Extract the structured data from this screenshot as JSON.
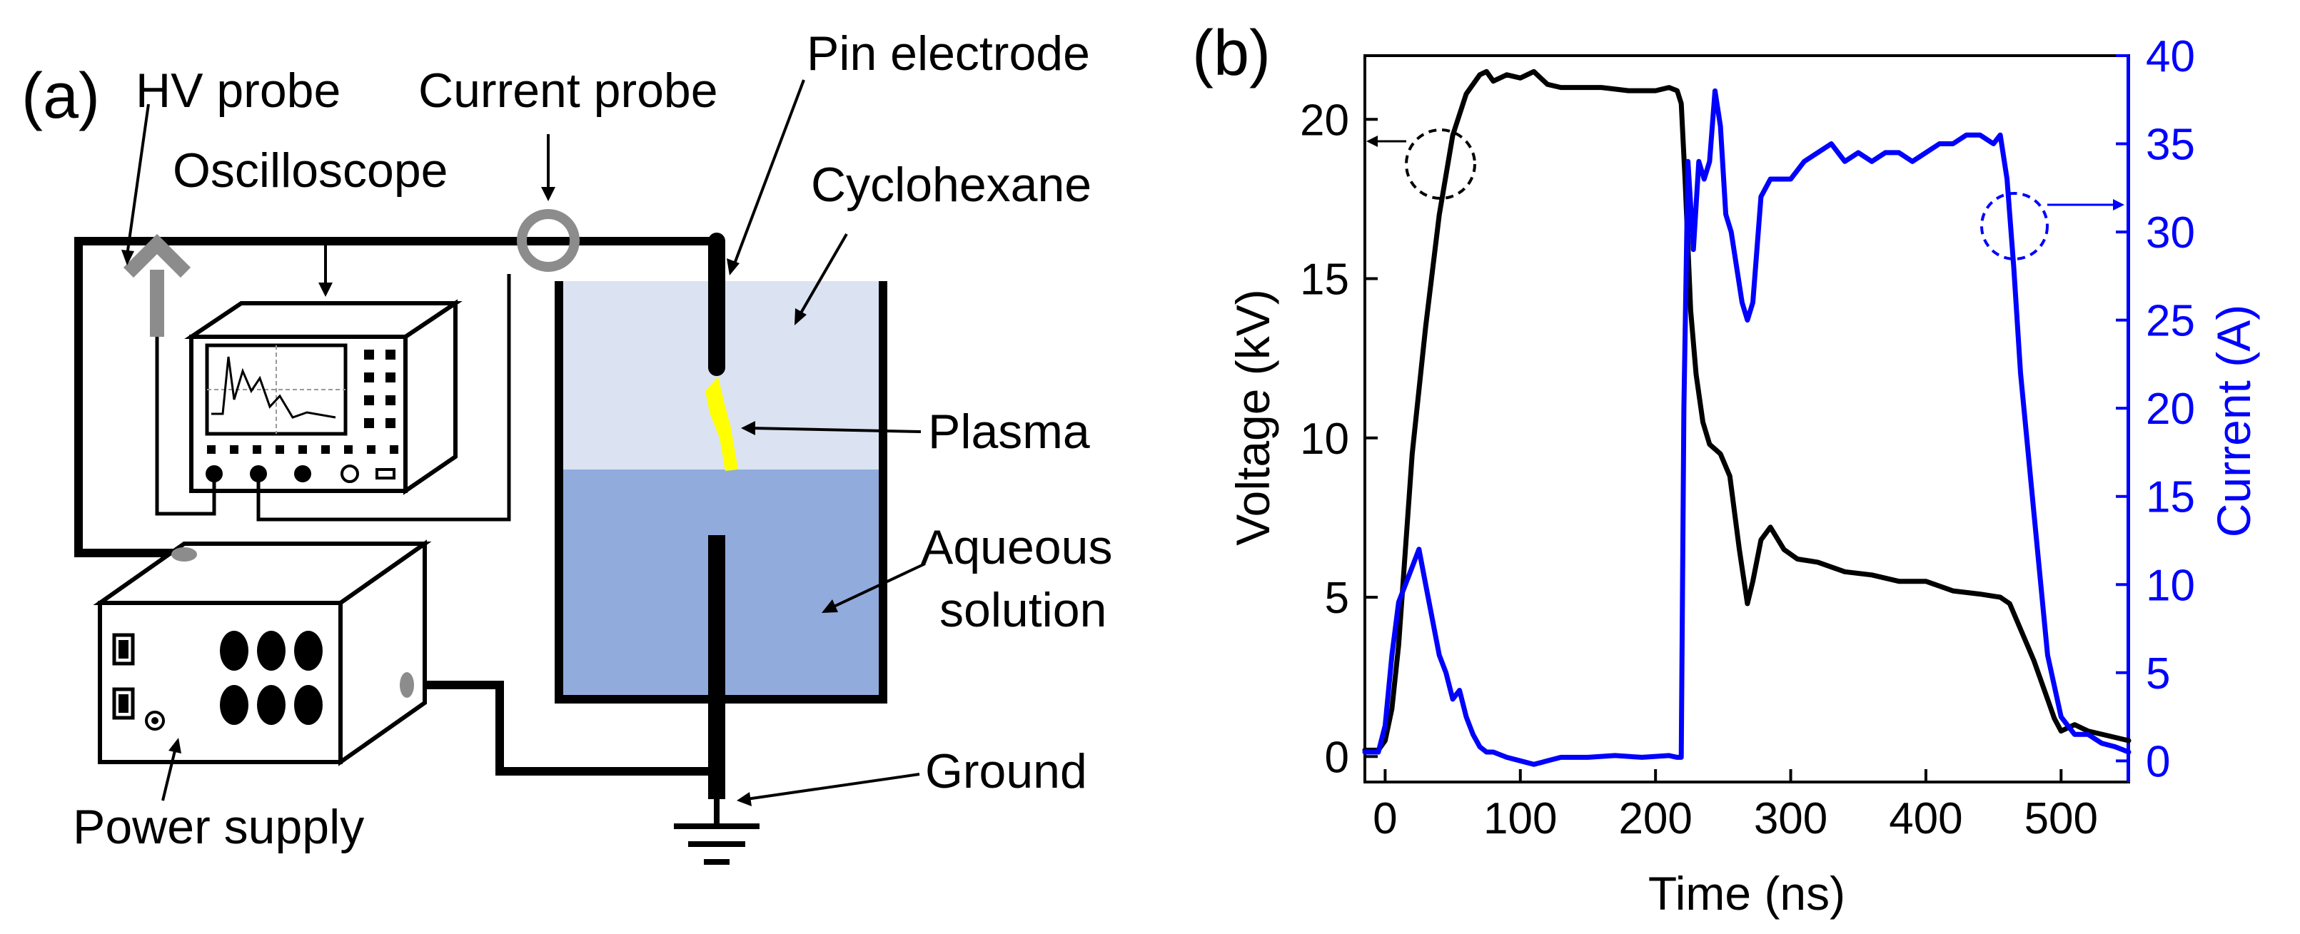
{
  "panel_a": {
    "panel_label": "(a)",
    "labels": {
      "hv_probe": "HV probe",
      "current_probe": "Current probe",
      "pin_electrode": "Pin electrode",
      "oscilloscope": "Oscilloscope",
      "cyclohexane": "Cyclohexane",
      "plasma": "Plasma",
      "aqueous_line1": "Aqueous",
      "aqueous_line2": "solution",
      "ground": "Ground",
      "power_supply": "Power supply"
    },
    "colors": {
      "cyclohexane": "#dbe3f2",
      "aqueous": "#91abdd",
      "plasma": "#ffff00",
      "probe": "#8c8c8c",
      "wire": "#000000"
    }
  },
  "chart_data": {
    "type": "line",
    "panel_label": "(b)",
    "xlabel": "Time (ns)",
    "ylabel_left": "Voltage (kV)",
    "ylabel_right": "Current (A)",
    "xlim": [
      -15,
      550
    ],
    "ylim_left": [
      -0.8,
      22
    ],
    "ylim_right": [
      -1.2,
      40
    ],
    "x_ticks": [
      0,
      100,
      200,
      300,
      400,
      500
    ],
    "y_ticks_left": [
      0,
      5,
      10,
      15,
      20
    ],
    "y_ticks_right": [
      0,
      5,
      10,
      15,
      20,
      25,
      30,
      35,
      40
    ],
    "series": [
      {
        "name": "Voltage",
        "axis": "left",
        "color": "#000000",
        "x": [
          -15,
          -5,
          0,
          5,
          10,
          15,
          20,
          30,
          40,
          50,
          60,
          70,
          75,
          80,
          90,
          100,
          110,
          120,
          130,
          140,
          160,
          180,
          200,
          210,
          216,
          219,
          222,
          226,
          230,
          235,
          240,
          248,
          255,
          262,
          268,
          272,
          278,
          285,
          295,
          305,
          320,
          340,
          360,
          380,
          400,
          420,
          440,
          455,
          462,
          470,
          480,
          490,
          495,
          500,
          510,
          520,
          530,
          540,
          550
        ],
        "y": [
          0.2,
          0.2,
          0.5,
          1.5,
          3.5,
          6.5,
          9.5,
          13.5,
          17.0,
          19.5,
          20.8,
          21.4,
          21.5,
          21.2,
          21.4,
          21.3,
          21.5,
          21.1,
          21.0,
          21.0,
          21.0,
          20.9,
          20.9,
          21.0,
          20.9,
          20.5,
          18.0,
          14.0,
          12.0,
          10.5,
          9.8,
          9.5,
          8.8,
          6.5,
          4.8,
          5.5,
          6.8,
          7.2,
          6.5,
          6.2,
          6.1,
          5.8,
          5.7,
          5.5,
          5.5,
          5.2,
          5.1,
          5.0,
          4.8,
          4.0,
          3.0,
          1.8,
          1.2,
          0.8,
          1.0,
          0.8,
          0.7,
          0.6,
          0.5
        ]
      },
      {
        "name": "Current",
        "axis": "right",
        "color": "#0000ff",
        "x": [
          -15,
          -5,
          0,
          5,
          10,
          15,
          20,
          25,
          30,
          35,
          40,
          45,
          50,
          55,
          60,
          65,
          70,
          75,
          80,
          90,
          100,
          110,
          120,
          130,
          150,
          170,
          190,
          210,
          216,
          219,
          221,
          224,
          228,
          232,
          236,
          240,
          244,
          248,
          252,
          256,
          260,
          264,
          268,
          272,
          278,
          285,
          290,
          300,
          310,
          320,
          330,
          340,
          350,
          360,
          370,
          380,
          390,
          400,
          410,
          420,
          430,
          440,
          450,
          455,
          460,
          465,
          470,
          480,
          490,
          500,
          510,
          520,
          530,
          540,
          550
        ],
        "y": [
          0.5,
          0.5,
          2.0,
          6.0,
          9.0,
          10.0,
          11.0,
          12.0,
          10.0,
          8.0,
          6.0,
          5.0,
          3.5,
          4.0,
          2.5,
          1.5,
          0.8,
          0.5,
          0.5,
          0.2,
          0.0,
          -0.2,
          0.0,
          0.2,
          0.2,
          0.3,
          0.2,
          0.3,
          0.2,
          0.2,
          20.0,
          34.0,
          29.0,
          34.0,
          33.0,
          34.0,
          38.0,
          36.0,
          31.0,
          30.0,
          28.0,
          26.0,
          25.0,
          26.0,
          32.0,
          33.0,
          33.0,
          33.0,
          34.0,
          34.5,
          35.0,
          34.0,
          34.5,
          34.0,
          34.5,
          34.5,
          34.0,
          34.5,
          35.0,
          35.0,
          35.5,
          35.5,
          35.0,
          35.5,
          33.0,
          28.0,
          22.0,
          14.0,
          6.0,
          2.5,
          1.5,
          1.5,
          1.0,
          0.8,
          0.5
        ]
      }
    ]
  }
}
